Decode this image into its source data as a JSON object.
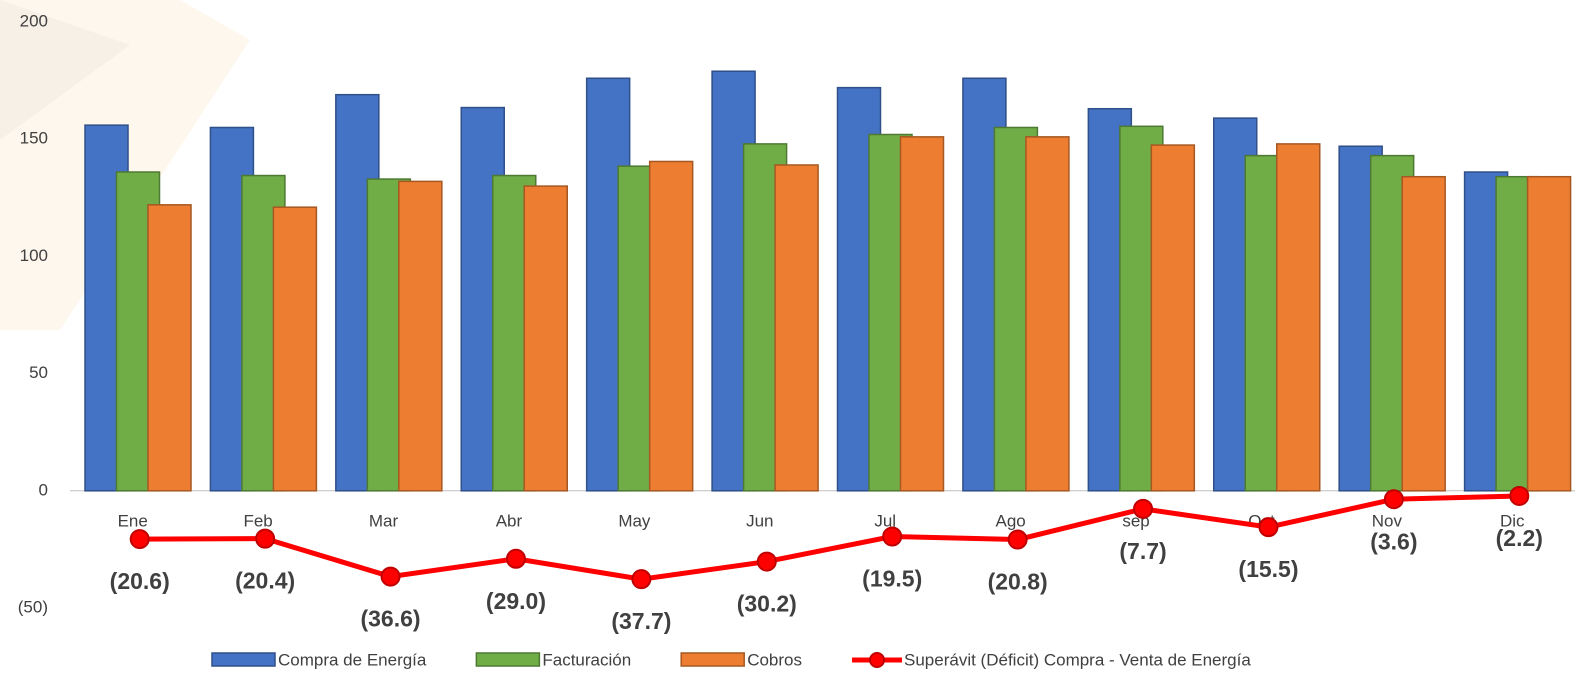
{
  "chart_data": {
    "type": "bar",
    "categories": [
      "Ene",
      "Feb",
      "Mar",
      "Abr",
      "May",
      "Jun",
      "Jul",
      "Ago",
      "sep",
      "Oct",
      "Nov",
      "Dic"
    ],
    "series": [
      {
        "name": "Compra de Energía",
        "color": "#4472c4",
        "values": [
          156,
          155,
          169,
          163.5,
          176,
          179,
          172,
          176,
          163,
          159,
          147,
          136
        ]
      },
      {
        "name": "Facturación",
        "color": "#70ad47",
        "values": [
          136,
          134.5,
          133,
          134.5,
          138.5,
          148,
          152,
          155,
          155.5,
          143,
          143,
          134
        ]
      },
      {
        "name": "Cobros",
        "color": "#ed7d31",
        "values": [
          122,
          121,
          132,
          130,
          140.5,
          139,
          151,
          151,
          147.5,
          148,
          134,
          134
        ]
      },
      {
        "name": "Superávit (Déficit) Compra - Venta de Energía",
        "color": "#ff0000",
        "type": "line",
        "values": [
          -20.6,
          -20.4,
          -36.6,
          -29.0,
          -37.7,
          -30.2,
          -19.5,
          -20.8,
          -7.7,
          -15.5,
          -3.6,
          -2.2
        ],
        "value_labels": [
          "(20.6)",
          "(20.4)",
          "(36.6)",
          "(29.0)",
          "(37.7)",
          "(30.2)",
          "(19.5)",
          "(20.8)",
          "(7.7)",
          "(15.5)",
          "(3.6)",
          "(2.2)"
        ]
      }
    ],
    "ylim": [
      -50,
      200
    ],
    "yticks": [
      {
        "value": -50,
        "label": "(50)"
      },
      0,
      50,
      100,
      150,
      200
    ],
    "legend": "bottom"
  }
}
